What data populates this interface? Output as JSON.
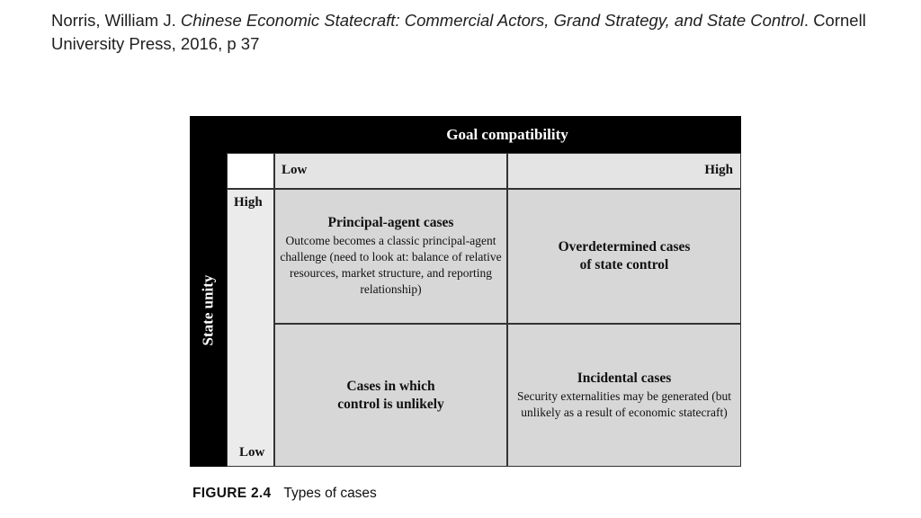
{
  "citation": {
    "author": "Norris, William J. ",
    "title": "Chinese Economic Statecraft: Commercial Actors, Grand Strategy, and State Control",
    "publisher": ". Cornell University Press, 2016, p 37"
  },
  "figure": {
    "header": "Goal compatibility",
    "side_label": "State unity",
    "col_low": "Low",
    "col_high": "High",
    "row_high": "High",
    "row_low": "Low",
    "cells": {
      "top_left": {
        "title": "Principal-agent cases",
        "body": "Outcome becomes a classic principal-agent challenge (need to look at: balance of relative resources, market structure, and reporting relationship)"
      },
      "top_right": {
        "title_line1": "Overdetermined cases",
        "title_line2": "of state control"
      },
      "bottom_left": {
        "title_line1": "Cases in which",
        "title_line2": "control is unlikely"
      },
      "bottom_right": {
        "title": "Incidental cases",
        "body": "Security externalities may be generated (but unlikely as a result of economic statecraft)"
      }
    }
  },
  "caption": {
    "number": "FIGURE 2.4",
    "text": "Types of cases"
  }
}
